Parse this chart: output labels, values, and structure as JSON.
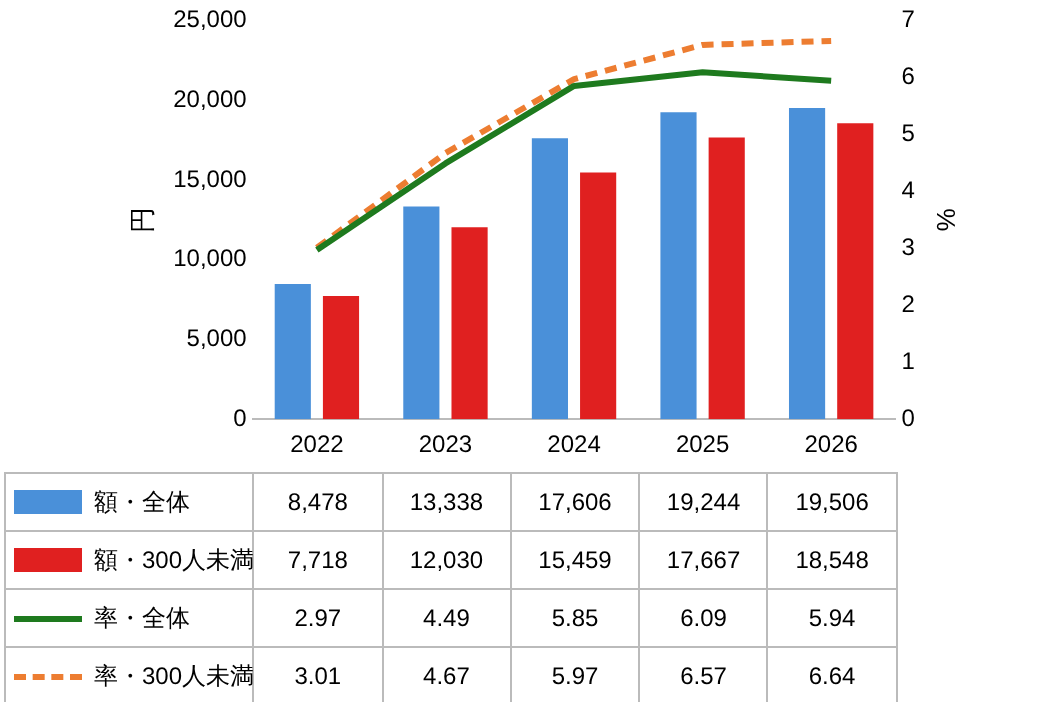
{
  "chart_data": {
    "type": "bar",
    "ylabel": "円",
    "y2label": "%",
    "categories": [
      "2022",
      "2023",
      "2024",
      "2025",
      "2026"
    ],
    "series": [
      {
        "name": "額・全体",
        "color": "#4a90d9",
        "values": [
          8478,
          13338,
          17606,
          19244,
          19506
        ],
        "value_labels": [
          "8,478",
          "13,338",
          "17,606",
          "19,244",
          "19,506"
        ]
      },
      {
        "name": "額・300人未満",
        "color": "#e02020",
        "values": [
          7718,
          12030,
          15459,
          17667,
          18548
        ],
        "value_labels": [
          "7,718",
          "12,030",
          "15,459",
          "17,667",
          "18,548"
        ]
      },
      {
        "name": "率・全体",
        "type": "line",
        "axis": "y2",
        "line_style": "solid",
        "color": "#1e7a1e",
        "values": [
          2.97,
          4.49,
          5.85,
          6.09,
          5.94
        ],
        "value_labels": [
          "2.97",
          "4.49",
          "5.85",
          "6.09",
          "5.94"
        ]
      },
      {
        "name": "率・300人未満",
        "type": "line",
        "axis": "y2",
        "line_style": "dashed",
        "color": "#ed7d31",
        "values": [
          3.01,
          4.67,
          5.97,
          6.57,
          6.64
        ],
        "value_labels": [
          "3.01",
          "4.67",
          "5.97",
          "6.57",
          "6.64"
        ]
      }
    ],
    "ylim": [
      0,
      25000
    ],
    "yticks": [
      0,
      {
        "value": 5000,
        "label": "5,000"
      },
      {
        "value": 10000,
        "label": "10,000"
      },
      {
        "value": 15000,
        "label": "15,000"
      },
      {
        "value": 20000,
        "label": "20,000"
      },
      {
        "value": 25000,
        "label": "25,000"
      }
    ],
    "y2lim": [
      0,
      7
    ],
    "y2ticks": [
      0,
      1,
      2,
      3,
      4,
      5,
      6,
      7
    ],
    "marker": "none",
    "legend": "bottom"
  }
}
